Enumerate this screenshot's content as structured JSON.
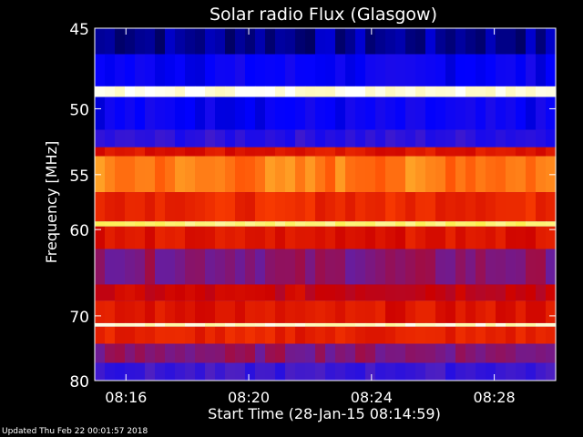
{
  "chart_data": {
    "type": "heatmap",
    "title": "Solar radio Flux (Glasgow)",
    "ylabel": "Frequency [MHz]",
    "xlabel": "Start Time (28-Jan-15 08:14:59)",
    "y_scale": "reciprocal",
    "ylim": [
      45,
      80
    ],
    "xlim": [
      "08:14:59",
      "08:30:00"
    ],
    "y_ticks": [
      "45",
      "50",
      "55",
      "60",
      "70",
      "80"
    ],
    "y_tick_values": [
      45,
      50,
      55,
      60,
      70,
      80
    ],
    "x_ticks": [
      "08:16",
      "08:20",
      "08:24",
      "08:28"
    ],
    "x_tick_values": [
      "08:16",
      "08:20",
      "08:24",
      "08:28"
    ],
    "colormap": [
      "#000000",
      "#0000ff",
      "#5522bb",
      "#cc0000",
      "#ff4400",
      "#ffee44",
      "#ffffff"
    ],
    "bands": [
      {
        "from": 45,
        "to": 46.5,
        "level": 0.1
      },
      {
        "from": 46.5,
        "to": 48.5,
        "level": 0.18
      },
      {
        "from": 48.5,
        "to": 49.2,
        "level": 0.98
      },
      {
        "from": 49.2,
        "to": 51.5,
        "level": 0.18
      },
      {
        "from": 51.5,
        "to": 52.8,
        "level": 0.25
      },
      {
        "from": 52.8,
        "to": 53.5,
        "level": 0.55
      },
      {
        "from": 53.5,
        "to": 56.5,
        "level": 0.72
      },
      {
        "from": 56.5,
        "to": 59.2,
        "level": 0.6
      },
      {
        "from": 59.2,
        "to": 59.7,
        "level": 0.88
      },
      {
        "from": 59.7,
        "to": 62,
        "level": 0.55
      },
      {
        "from": 62,
        "to": 66,
        "level": 0.4
      },
      {
        "from": 66,
        "to": 68,
        "level": 0.5
      },
      {
        "from": 68,
        "to": 71,
        "level": 0.55
      },
      {
        "from": 71,
        "to": 71.5,
        "level": 0.95
      },
      {
        "from": 71.5,
        "to": 74,
        "level": 0.58
      },
      {
        "from": 74,
        "to": 77,
        "level": 0.4
      },
      {
        "from": 77,
        "to": 80,
        "level": 0.28
      }
    ]
  },
  "footer": {
    "updated": "Updated Thu Feb 22 00:01:57 2018"
  }
}
